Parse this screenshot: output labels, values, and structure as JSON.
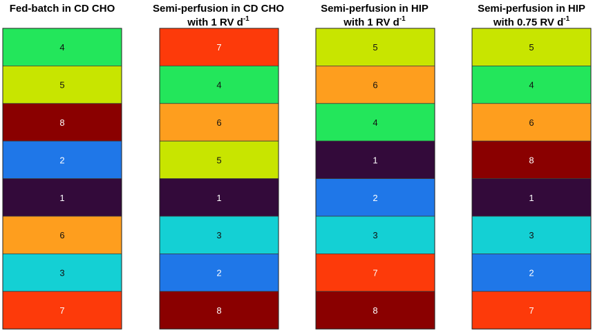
{
  "chart_data": {
    "type": "table",
    "columns": [
      {
        "title": "Fed-batch in CD CHO",
        "title_line2": "",
        "title_sup": "",
        "values": [
          4,
          5,
          8,
          2,
          1,
          6,
          3,
          7
        ]
      },
      {
        "title": "Semi-perfusion in CD CHO",
        "title_line2": "with 1 RV d",
        "title_sup": "-1",
        "values": [
          7,
          4,
          6,
          5,
          1,
          3,
          2,
          8
        ]
      },
      {
        "title": "Semi-perfusion in HIP",
        "title_line2": "with 1 RV d",
        "title_sup": "-1",
        "values": [
          5,
          6,
          4,
          1,
          2,
          3,
          7,
          8
        ]
      },
      {
        "title": "Semi-perfusion in HIP",
        "title_line2": "with 0.75 RV d",
        "title_sup": "-1",
        "values": [
          5,
          4,
          6,
          8,
          1,
          3,
          2,
          7
        ]
      }
    ],
    "value_colors": {
      "1": "#330a3a",
      "2": "#1f77e8",
      "3": "#14d0d4",
      "4": "#23e65b",
      "5": "#c8e500",
      "6": "#fe9e1e",
      "7": "#fd3a0a",
      "8": "#8a0000"
    }
  }
}
